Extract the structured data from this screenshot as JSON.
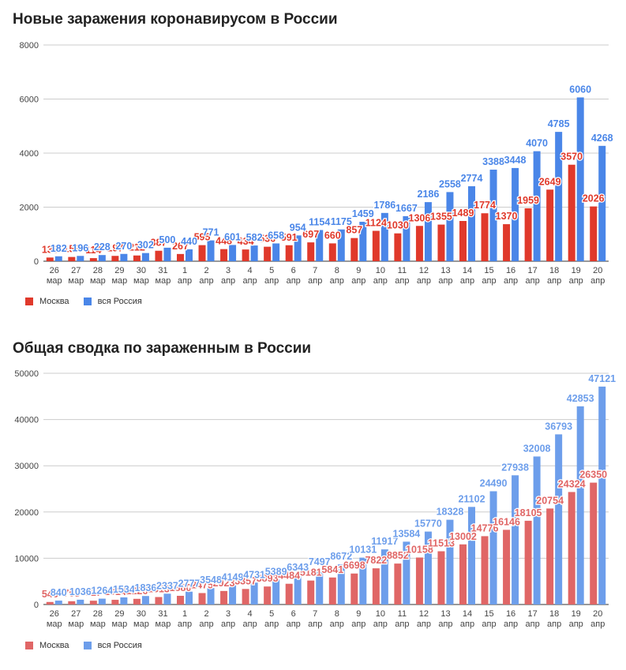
{
  "chart_data": [
    {
      "type": "bar",
      "title": "Новые заражения коронавирусом в России",
      "xlabel": "",
      "ylabel": "",
      "ylim": [
        0,
        8000
      ],
      "yticks": [
        0,
        2000,
        4000,
        6000,
        8000
      ],
      "grid": true,
      "legend_position": "bottom-left",
      "categories": [
        "26 мар",
        "27 мар",
        "28 мар",
        "29 мар",
        "30 мар",
        "31 мар",
        "1 апр",
        "2 апр",
        "3 апр",
        "4 апр",
        "5 апр",
        "6 апр",
        "7 апр",
        "8 апр",
        "9 апр",
        "10 апр",
        "11 апр",
        "12 апр",
        "13 апр",
        "14 апр",
        "15 апр",
        "16 апр",
        "17 апр",
        "18 апр",
        "19 апр",
        "20 апр"
      ],
      "series": [
        {
          "name": "Москва",
          "color": "#e0392b",
          "values": [
            136,
            157,
            114,
            197,
            212,
            387,
            267,
            595,
            448,
            434,
            536,
            591,
            697,
            660,
            857,
            1124,
            1030,
            1306,
            1355,
            1489,
            1774,
            1370,
            1959,
            2649,
            3570,
            2026
          ]
        },
        {
          "name": "вся Россия",
          "color": "#4a86e8",
          "values": [
            182,
            196,
            228,
            270,
            302,
            500,
            440,
            771,
            601,
            582,
            658,
            954,
            1154,
            1175,
            1459,
            1786,
            1667,
            2186,
            2558,
            2774,
            3388,
            3448,
            4070,
            4785,
            6060,
            4268
          ]
        }
      ]
    },
    {
      "type": "bar",
      "title": "Общая сводка по зараженным в России",
      "xlabel": "",
      "ylabel": "",
      "ylim": [
        0,
        50000
      ],
      "yticks": [
        0,
        10000,
        20000,
        30000,
        40000,
        50000
      ],
      "grid": true,
      "legend_position": "bottom-left",
      "categories": [
        "26 мар",
        "27 мар",
        "28 мар",
        "29 мар",
        "30 мар",
        "31 мар",
        "1 апр",
        "2 апр",
        "3 апр",
        "4 апр",
        "5 апр",
        "6 апр",
        "7 апр",
        "8 апр",
        "9 апр",
        "10 апр",
        "11 апр",
        "12 апр",
        "13 апр",
        "14 апр",
        "15 апр",
        "16 апр",
        "17 апр",
        "18 апр",
        "19 апр",
        "20 апр"
      ],
      "series": [
        {
          "name": "Москва",
          "color": "#e06666",
          "values": [
            546,
            703,
            817,
            1014,
            1226,
            1613,
            1880,
            2475,
            2923,
            3357,
            3893,
            4484,
            5181,
            5841,
            6698,
            7822,
            8852,
            10158,
            11513,
            13002,
            14776,
            16146,
            18105,
            20754,
            24324,
            26350
          ]
        },
        {
          "name": "вся Россия",
          "color": "#6d9eeb",
          "values": [
            840,
            1036,
            1264,
            1534,
            1836,
            2337,
            2777,
            3548,
            4149,
            4731,
            5389,
            6343,
            7497,
            8672,
            10131,
            11917,
            13584,
            15770,
            18328,
            21102,
            24490,
            27938,
            32008,
            36793,
            42853,
            47121
          ]
        }
      ]
    }
  ]
}
